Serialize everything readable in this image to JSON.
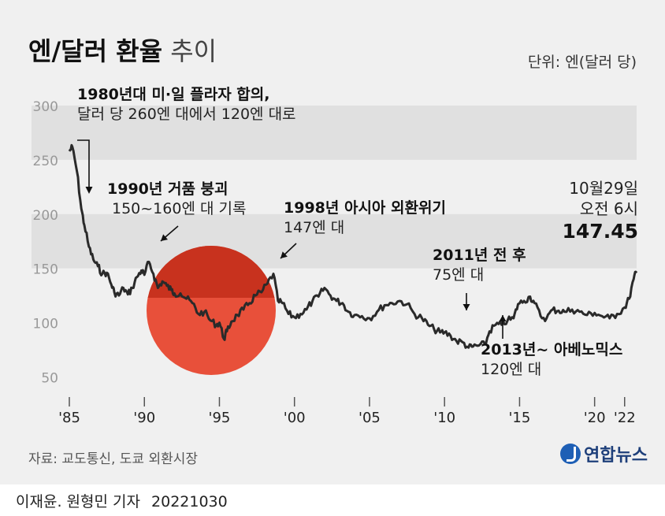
{
  "title_bold": "엔/달러 환율",
  "title_light": "추이",
  "unit": "단위: 엔(달러 당)",
  "colors": {
    "band": "#e0e0e0",
    "line": "#2a2a2a",
    "sun_outer": "#e8503a",
    "sun_inner": "#c8321e",
    "grid": "#cfcfcf"
  },
  "annotations": {
    "plaza": {
      "head": "1980년대 미·일 플라자 합의,",
      "body": "달러 당 260엔 대에서 120엔 대로"
    },
    "bubble": {
      "head": "1990년 거품 붕괴",
      "body": "150~160엔 대 기록"
    },
    "asia": {
      "head": "1998년 아시아 외환위기",
      "body": "147엔 대"
    },
    "y2011": {
      "head": "2011년 전 후",
      "body": "75엔 대"
    },
    "abenomics": {
      "head": "2013년~ 아베노믹스",
      "body": "120엔 대"
    }
  },
  "latest": {
    "date": "10월29일",
    "time": "오전 6시",
    "value": "147.45"
  },
  "source": "자료: 교도통신, 도쿄 외환시장",
  "logo": "연합뉴스",
  "byline": "이재윤. 원형민 기자",
  "byline_date": "20221030",
  "chart_data": {
    "type": "line",
    "title": "엔/달러 환율 추이",
    "ylabel": "엔(달러 당)",
    "xlabel": "",
    "ylim": [
      30,
      300
    ],
    "yticks": [
      50,
      100,
      150,
      200,
      250,
      300
    ],
    "xlim": [
      1985,
      2022.8
    ],
    "xticks": [
      {
        "label": "'85",
        "year": 1985
      },
      {
        "label": "'90",
        "year": 1990
      },
      {
        "label": "'95",
        "year": 1995
      },
      {
        "label": "'00",
        "year": 2000
      },
      {
        "label": "'05",
        "year": 2005
      },
      {
        "label": "'10",
        "year": 2010
      },
      {
        "label": "'15",
        "year": 2015
      },
      {
        "label": "'20",
        "year": 2020
      },
      {
        "label": "'22",
        "year": 2022
      }
    ],
    "shaded_bands": [
      [
        250,
        300
      ],
      [
        150,
        200
      ]
    ],
    "series": [
      {
        "name": "엔/달러",
        "x": [
          1985.0,
          1985.2,
          1985.5,
          1985.8,
          1986.0,
          1986.3,
          1986.6,
          1986.9,
          1987.2,
          1987.5,
          1987.8,
          1988.0,
          1988.3,
          1988.6,
          1988.9,
          1989.2,
          1989.5,
          1989.8,
          1990.0,
          1990.3,
          1990.6,
          1990.9,
          1991.2,
          1991.5,
          1991.8,
          1992.0,
          1992.4,
          1992.8,
          1993.2,
          1993.6,
          1994.0,
          1994.4,
          1994.8,
          1995.0,
          1995.3,
          1995.5,
          1995.8,
          1996.2,
          1996.6,
          1997.0,
          1997.4,
          1997.8,
          1998.2,
          1998.6,
          1998.9,
          1999.2,
          1999.6,
          2000.0,
          2000.4,
          2000.8,
          2001.2,
          2001.6,
          2002.0,
          2002.4,
          2002.8,
          2003.2,
          2003.6,
          2004.0,
          2004.5,
          2005.0,
          2005.5,
          2006.0,
          2006.5,
          2007.0,
          2007.5,
          2008.0,
          2008.5,
          2008.9,
          2009.3,
          2009.7,
          2010.0,
          2010.4,
          2010.8,
          2011.2,
          2011.6,
          2011.9,
          2012.3,
          2012.7,
          2013.0,
          2013.4,
          2013.8,
          2014.2,
          2014.6,
          2014.9,
          2015.3,
          2015.7,
          2016.0,
          2016.4,
          2016.8,
          2017.2,
          2017.6,
          2018.0,
          2018.5,
          2019.0,
          2019.5,
          2020.0,
          2020.5,
          2021.0,
          2021.5,
          2022.0,
          2022.3,
          2022.6,
          2022.8
        ],
        "values": [
          258,
          262,
          240,
          205,
          190,
          170,
          158,
          152,
          145,
          146,
          135,
          128,
          125,
          132,
          126,
          132,
          142,
          148,
          144,
          156,
          145,
          132,
          138,
          134,
          130,
          127,
          127,
          122,
          118,
          108,
          110,
          102,
          98,
          100,
          85,
          92,
          101,
          107,
          112,
          118,
          125,
          128,
          136,
          145,
          120,
          118,
          108,
          105,
          108,
          112,
          120,
          124,
          132,
          125,
          120,
          118,
          110,
          107,
          106,
          104,
          110,
          116,
          118,
          120,
          117,
          108,
          104,
          98,
          94,
          91,
          91,
          88,
          83,
          82,
          77,
          78,
          79,
          80,
          92,
          98,
          98,
          102,
          104,
          117,
          120,
          124,
          118,
          106,
          104,
          112,
          111,
          110,
          112,
          110,
          107,
          109,
          106,
          104,
          108,
          114,
          122,
          140,
          147.45
        ]
      }
    ],
    "highlight": {
      "label": "147.45",
      "x": 2022.8
    }
  }
}
